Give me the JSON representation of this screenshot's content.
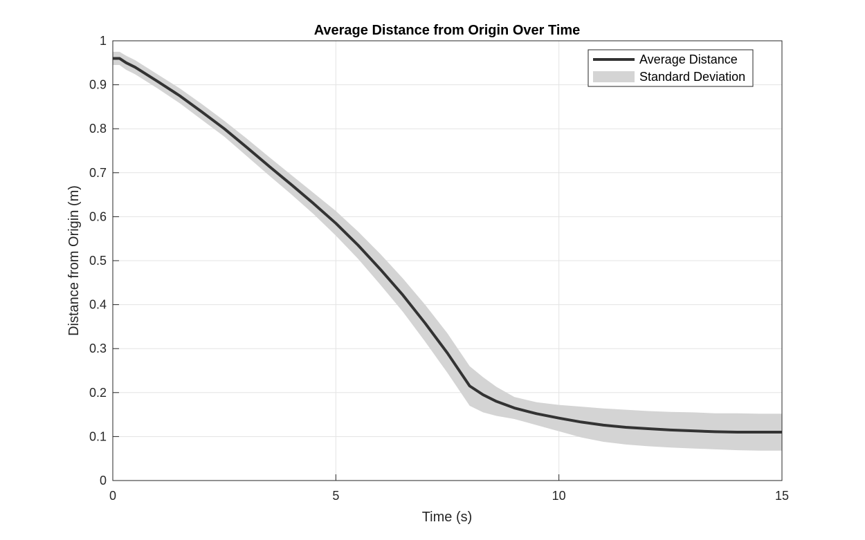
{
  "chart_data": {
    "type": "line",
    "title": "Average Distance from Origin Over Time",
    "xlabel": "Time (s)",
    "ylabel": "Distance from Origin (m)",
    "xlim": [
      0,
      15
    ],
    "ylim": [
      0,
      1
    ],
    "xticks": [
      0,
      5,
      10,
      15
    ],
    "yticks": [
      0,
      0.1,
      0.2,
      0.3,
      0.4,
      0.5,
      0.6,
      0.7,
      0.8,
      0.9,
      1
    ],
    "grid": true,
    "legend_position": "top-right",
    "x": [
      0,
      0.15,
      0.3,
      0.5,
      1,
      1.5,
      2,
      2.5,
      3,
      3.5,
      4,
      4.5,
      5,
      5.5,
      6,
      6.5,
      7,
      7.5,
      8,
      8.3,
      8.6,
      9,
      9.5,
      10,
      10.5,
      11,
      11.5,
      12,
      12.5,
      13,
      13.5,
      14,
      14.5,
      15
    ],
    "series": [
      {
        "name": "Average Distance",
        "values": [
          0.96,
          0.96,
          0.95,
          0.94,
          0.908,
          0.875,
          0.838,
          0.8,
          0.758,
          0.715,
          0.673,
          0.63,
          0.585,
          0.535,
          0.48,
          0.422,
          0.358,
          0.29,
          0.215,
          0.195,
          0.18,
          0.165,
          0.152,
          0.142,
          0.133,
          0.126,
          0.121,
          0.118,
          0.115,
          0.113,
          0.111,
          0.11,
          0.11,
          0.11
        ],
        "color": "#333333"
      },
      {
        "name": "Standard Deviation",
        "upper": [
          0.975,
          0.975,
          0.966,
          0.956,
          0.924,
          0.892,
          0.856,
          0.818,
          0.778,
          0.736,
          0.695,
          0.654,
          0.613,
          0.566,
          0.515,
          0.46,
          0.4,
          0.335,
          0.26,
          0.235,
          0.213,
          0.19,
          0.178,
          0.172,
          0.168,
          0.164,
          0.161,
          0.158,
          0.156,
          0.155,
          0.153,
          0.153,
          0.152,
          0.152
        ],
        "lower": [
          0.945,
          0.945,
          0.934,
          0.924,
          0.892,
          0.858,
          0.82,
          0.782,
          0.738,
          0.694,
          0.651,
          0.606,
          0.557,
          0.504,
          0.445,
          0.384,
          0.316,
          0.245,
          0.17,
          0.155,
          0.147,
          0.14,
          0.126,
          0.112,
          0.098,
          0.088,
          0.082,
          0.078,
          0.075,
          0.073,
          0.071,
          0.069,
          0.068,
          0.068
        ],
        "color": "#d4d4d4"
      }
    ]
  }
}
